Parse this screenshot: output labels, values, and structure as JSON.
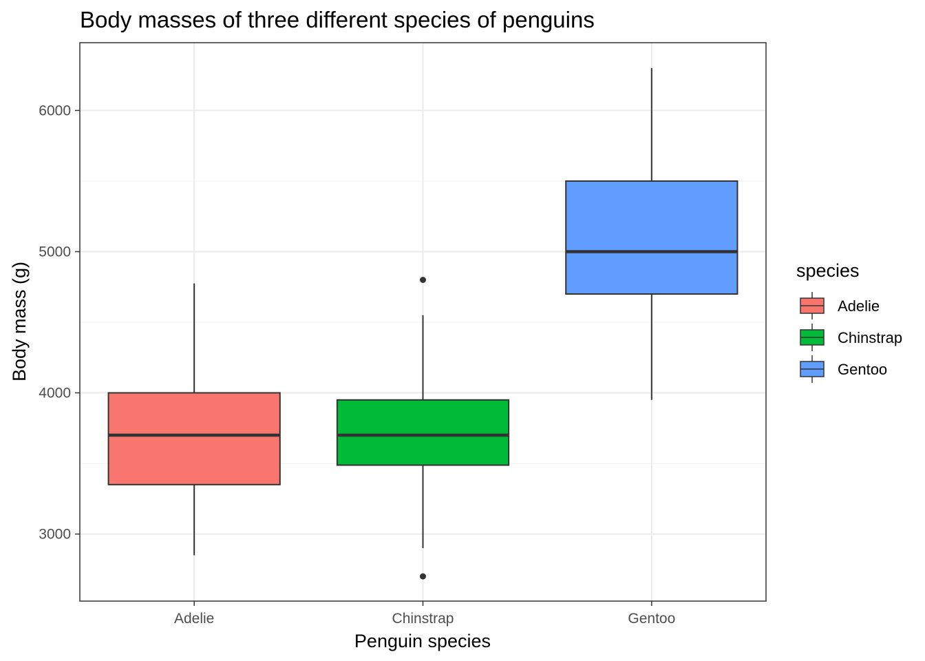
{
  "chart_data": {
    "type": "boxplot",
    "title": "Body masses of three different species of penguins",
    "xlabel": "Penguin species",
    "ylabel": "Body mass (g)",
    "ylim": [
      2525,
      6480
    ],
    "yticks": [
      3000,
      4000,
      5000,
      6000
    ],
    "grid": true,
    "legend": {
      "title": "species",
      "position": "right"
    },
    "categories": [
      "Adelie",
      "Chinstrap",
      "Gentoo"
    ],
    "series": [
      {
        "name": "Adelie",
        "color": "#F8766D",
        "min": 2850,
        "q1": 3350,
        "median": 3700,
        "q3": 4000,
        "max": 4775,
        "outliers": []
      },
      {
        "name": "Chinstrap",
        "color": "#00BA38",
        "min": 2900,
        "q1": 3488,
        "median": 3700,
        "q3": 3950,
        "max": 4550,
        "outliers": [
          4800,
          2700
        ]
      },
      {
        "name": "Gentoo",
        "color": "#619CFF",
        "min": 3950,
        "q1": 4700,
        "median": 5000,
        "q3": 5500,
        "max": 6300,
        "outliers": []
      }
    ]
  }
}
